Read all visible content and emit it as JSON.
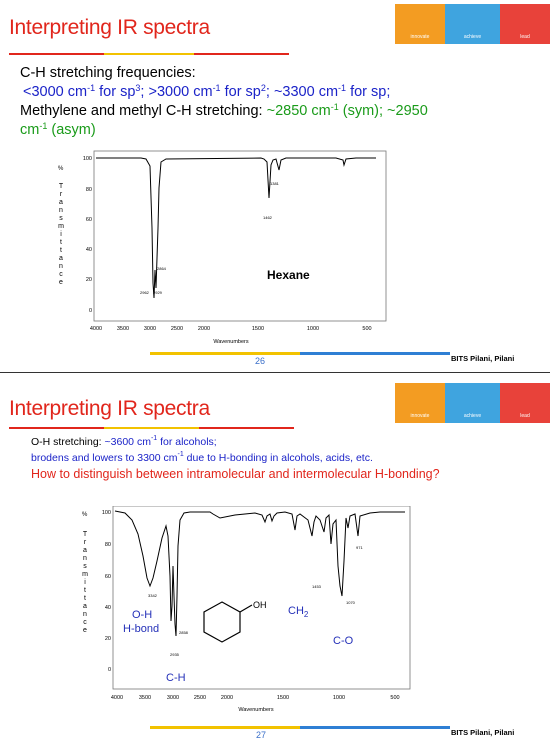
{
  "logo": {
    "labels": [
      "innovate",
      "achieve",
      "lead"
    ]
  },
  "slide1": {
    "title": "Interpreting IR spectra",
    "line1": "C-H stretching frequencies:",
    "line2_parts": [
      "<3000 cm",
      "-1",
      " for sp",
      "3",
      "; >3000 cm",
      "-1",
      " for sp",
      "2",
      "; ~3300 cm",
      "-1",
      " for sp;"
    ],
    "line3_text": "Methylene and methyl C-H stretching: ",
    "line3_green_a": "~2850 cm",
    "line3_sup_a": "-1",
    "line3_green_b": " (sym); ~2950",
    "line4_green": "cm",
    "line4_sup": "-1",
    "line4_tail": " (asym)",
    "spectrum": {
      "compound_label": "Hexane",
      "y_unit": "%",
      "y_axis_label": "Transmittance",
      "y_ticks": [
        "100",
        "80",
        "60",
        "40",
        "20",
        "0"
      ],
      "x_ticks": [
        "4000",
        "3500",
        "3000",
        "2500",
        "2000",
        "1500",
        "1000",
        "500"
      ],
      "x_label": "Wavenumbers",
      "peak_labels": [
        "2864",
        "2962",
        "2929",
        "1462",
        "1381"
      ]
    },
    "page": "26",
    "footer": "BITS Pilani, Pilani"
  },
  "slide2": {
    "title": "Interpreting IR spectra",
    "line1_text": "O-H stretching: ",
    "line1_blue": "~3600 cm",
    "line1_sup": "-1",
    "line1_blue_tail": " for alcohols;",
    "line2": "brodens and lowers to 3300 cm",
    "line2_sup": "-1",
    "line2_tail": " due to H-bonding in alcohols, acids, etc.",
    "line3": "How to distinguish between intramolecular and intermolecular H-bonding?",
    "spectrum": {
      "y_unit": "%",
      "y_axis_label": "Transmittance",
      "y_ticks": [
        "100",
        "80",
        "60",
        "40",
        "20",
        "0"
      ],
      "x_ticks": [
        "4000",
        "3500",
        "3000",
        "2500",
        "2000",
        "1500",
        "1000",
        "500"
      ],
      "x_label": "Wavenumbers",
      "peak_labels": [
        "3342",
        "2858",
        "2935",
        "1453",
        "1070",
        "971"
      ],
      "annotations": {
        "oh_hbond_1": "O-H",
        "oh_hbond_2": "H-bond",
        "ch": "C-H",
        "ch2": "CH",
        "ch2_sub": "2",
        "co": "C-O",
        "oh": "OH"
      }
    },
    "page": "27",
    "footer": "BITS Pilani, Pilani"
  },
  "colors": {
    "title_red": "#e1261c",
    "blue_text": "#1b23c8",
    "green_text": "#1a9b1a",
    "logo_orange": "#f39c22",
    "logo_blue": "#3fa4df",
    "logo_red": "#e8423a",
    "bar_yellow": "#f2c200",
    "bar_blue": "#2f7fd4"
  }
}
